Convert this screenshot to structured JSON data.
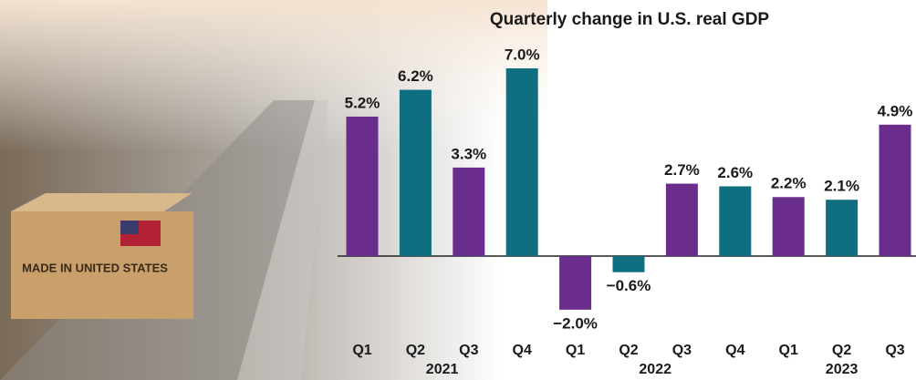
{
  "photo_labels": [
    "MADE IN UNITED STATES"
  ],
  "chart_data": {
    "type": "bar",
    "title": "Quarterly change in U.S. real GDP",
    "categories": [
      "Q1",
      "Q2",
      "Q3",
      "Q4",
      "Q1",
      "Q2",
      "Q3",
      "Q4",
      "Q1",
      "Q2",
      "Q3"
    ],
    "years": [
      "2021",
      "2021",
      "2021",
      "2021",
      "2022",
      "2022",
      "2022",
      "2022",
      "2023",
      "2023",
      "2023"
    ],
    "values": [
      5.2,
      6.2,
      3.3,
      7.0,
      -2.0,
      -0.6,
      2.7,
      2.6,
      2.2,
      2.1,
      4.9
    ],
    "value_labels": [
      "5.2%",
      "6.2%",
      "3.3%",
      "7.0%",
      "−2.0%",
      "−0.6%",
      "2.7%",
      "2.6%",
      "2.2%",
      "2.1%",
      "4.9%"
    ],
    "colors": [
      "#6b2d8c",
      "#0f6f81",
      "#6b2d8c",
      "#0f6f81",
      "#6b2d8c",
      "#0f6f81",
      "#6b2d8c",
      "#0f6f81",
      "#6b2d8c",
      "#0f6f81",
      "#6b2d8c"
    ]
  }
}
